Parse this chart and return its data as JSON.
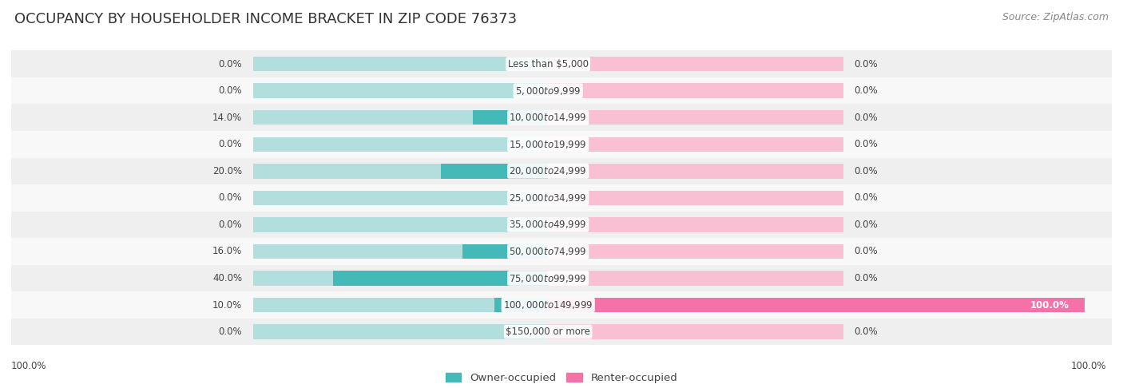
{
  "title": "OCCUPANCY BY HOUSEHOLDER INCOME BRACKET IN ZIP CODE 76373",
  "source": "Source: ZipAtlas.com",
  "categories": [
    "Less than $5,000",
    "$5,000 to $9,999",
    "$10,000 to $14,999",
    "$15,000 to $19,999",
    "$20,000 to $24,999",
    "$25,000 to $34,999",
    "$35,000 to $49,999",
    "$50,000 to $74,999",
    "$75,000 to $99,999",
    "$100,000 to $149,999",
    "$150,000 or more"
  ],
  "owner_values": [
    0.0,
    0.0,
    14.0,
    0.0,
    20.0,
    0.0,
    0.0,
    16.0,
    40.0,
    10.0,
    0.0
  ],
  "renter_values": [
    0.0,
    0.0,
    0.0,
    0.0,
    0.0,
    0.0,
    0.0,
    0.0,
    0.0,
    100.0,
    0.0
  ],
  "owner_color": "#45b8b8",
  "renter_color": "#f472a8",
  "owner_color_light": "#b2dede",
  "renter_color_light": "#f9c0d4",
  "row_bg_odd": "#efefef",
  "row_bg_even": "#f8f8f8",
  "text_color": "#444444",
  "title_color": "#333333",
  "source_color": "#888888",
  "background_color": "#ffffff",
  "max_val": 100,
  "bar_height": 0.55,
  "title_fontsize": 13,
  "label_fontsize": 8.5,
  "category_fontsize": 8.5,
  "legend_fontsize": 9.5,
  "source_fontsize": 9,
  "bg_bar_width": 55
}
